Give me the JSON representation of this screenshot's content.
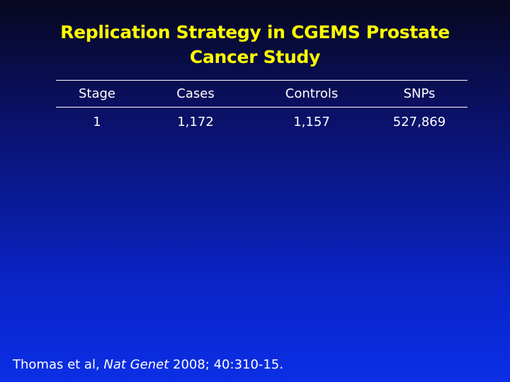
{
  "slide": {
    "title_line1": "Replication Strategy in CGEMS Prostate",
    "title_line2": "Cancer Study",
    "table": {
      "headers": [
        "Stage",
        "Cases",
        "Controls",
        "SNPs"
      ],
      "rows": [
        [
          "1",
          "1,172",
          "1,157",
          "527,869"
        ]
      ]
    },
    "citation": {
      "authors": "Thomas et al,",
      "journal": "Nat Genet",
      "details": "2008; 40:310-15."
    },
    "colors": {
      "title": "#ffff00",
      "text": "#ffffff",
      "background_top": "#07071f",
      "background_bottom": "#0b2fe6"
    }
  }
}
